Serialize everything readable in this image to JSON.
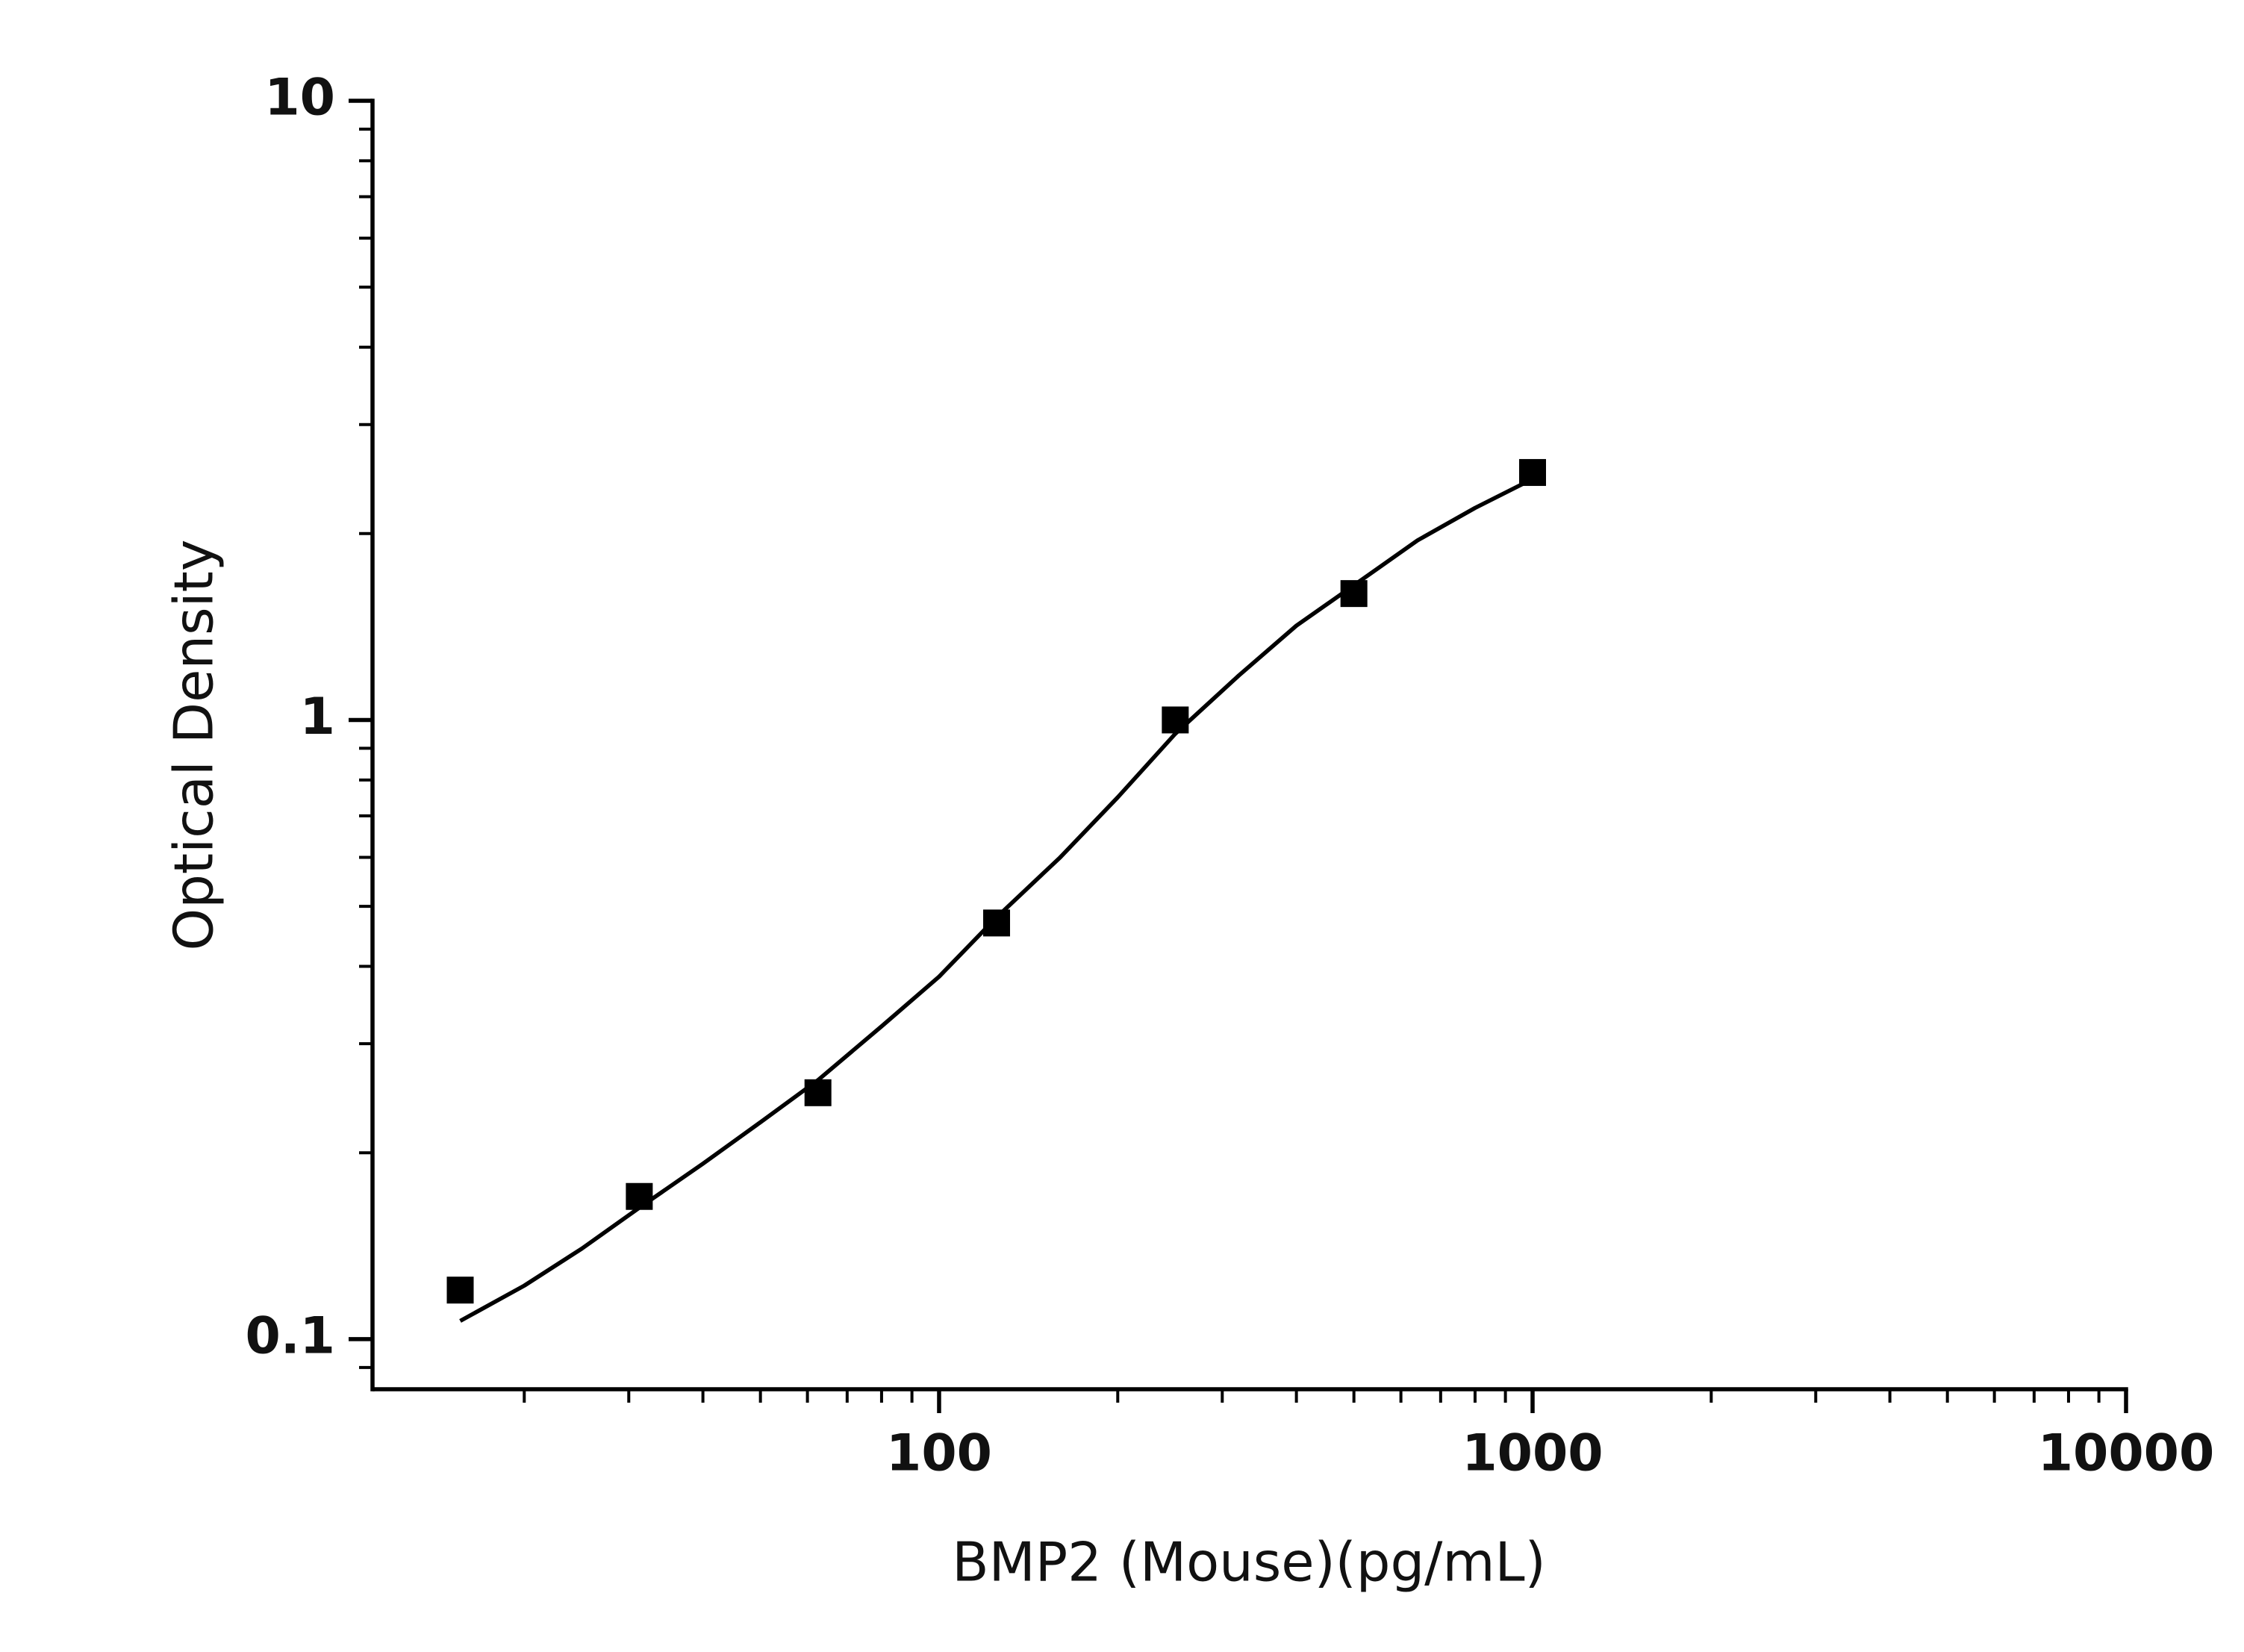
{
  "chart_data": {
    "type": "scatter",
    "x_label": "BMP2 (Mouse)(pg/mL)",
    "y_label": "Optical Density",
    "log_x": true,
    "log_y": true,
    "xlim": [
      11.1,
      10000
    ],
    "ylim": [
      0.083,
      10
    ],
    "xticks": [
      100,
      1000,
      10000
    ],
    "yticks": [
      0.1,
      1,
      10
    ],
    "series": [
      {
        "type": "scatter",
        "color": "#000000",
        "x": [
          15.6,
          31.25,
          62.5,
          125,
          250,
          500,
          1000
        ],
        "values": [
          0.12,
          0.17,
          0.25,
          0.47,
          1.0,
          1.6,
          2.51
        ]
      },
      {
        "type": "line",
        "color": "#000000",
        "x": [
          15.6,
          20,
          25,
          31.25,
          40,
          50,
          62.5,
          80,
          100,
          125,
          160,
          200,
          250,
          320,
          400,
          500,
          640,
          800,
          1000
        ],
        "values": [
          0.107,
          0.122,
          0.14,
          0.163,
          0.192,
          0.224,
          0.262,
          0.32,
          0.385,
          0.48,
          0.6,
          0.75,
          0.95,
          1.18,
          1.42,
          1.65,
          1.95,
          2.2,
          2.45
        ]
      }
    ]
  }
}
